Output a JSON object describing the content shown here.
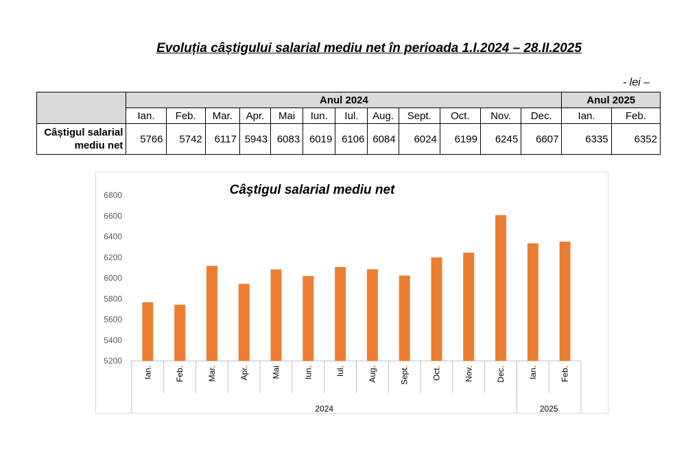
{
  "page_title": "Evoluția câștigului salarial mediu net în perioada 1.I.2024 – 28.II.2025",
  "unit_label": "- lei –",
  "table": {
    "years": [
      {
        "label": "Anul 2024",
        "span": 12
      },
      {
        "label": "Anul 2025",
        "span": 2
      }
    ],
    "months": [
      "Ian.",
      "Feb.",
      "Mar.",
      "Apr.",
      "Mai",
      "Iun.",
      "Iul.",
      "Aug.",
      "Sept.",
      "Oct.",
      "Nov.",
      "Dec.",
      "Ian.",
      "Feb."
    ],
    "row_label_line1": "Câștigul salarial",
    "row_label_line2": "mediu net",
    "values": [
      "5766",
      "5742",
      "6117",
      "5943",
      "6083",
      "6019",
      "6106",
      "6084",
      "6024",
      "6199",
      "6245",
      "6607",
      "6335",
      "6352"
    ]
  },
  "chart_data": {
    "type": "bar",
    "title": "Câştigul salarial  mediu net",
    "categories": [
      "Ian.",
      "Feb.",
      "Mar.",
      "Apr.",
      "Mai",
      "Iun.",
      "Iul.",
      "Aug.",
      "Sept.",
      "Oct.",
      "Nov.",
      "Dec.",
      "Ian.",
      "Feb."
    ],
    "groups": [
      {
        "label": "2024",
        "count": 12
      },
      {
        "label": "2025",
        "count": 2
      }
    ],
    "series": [
      {
        "values": [
          5766,
          5742,
          6117,
          5943,
          6083,
          6019,
          6106,
          6084,
          6024,
          6199,
          6245,
          6607,
          6335,
          6352
        ]
      }
    ],
    "ylim": [
      5200,
      6800
    ],
    "yticks": [
      5200,
      5400,
      5600,
      5800,
      6000,
      6200,
      6400,
      6600,
      6800
    ],
    "grid": false,
    "legend": "none",
    "bar_color": "#ed7d31"
  }
}
